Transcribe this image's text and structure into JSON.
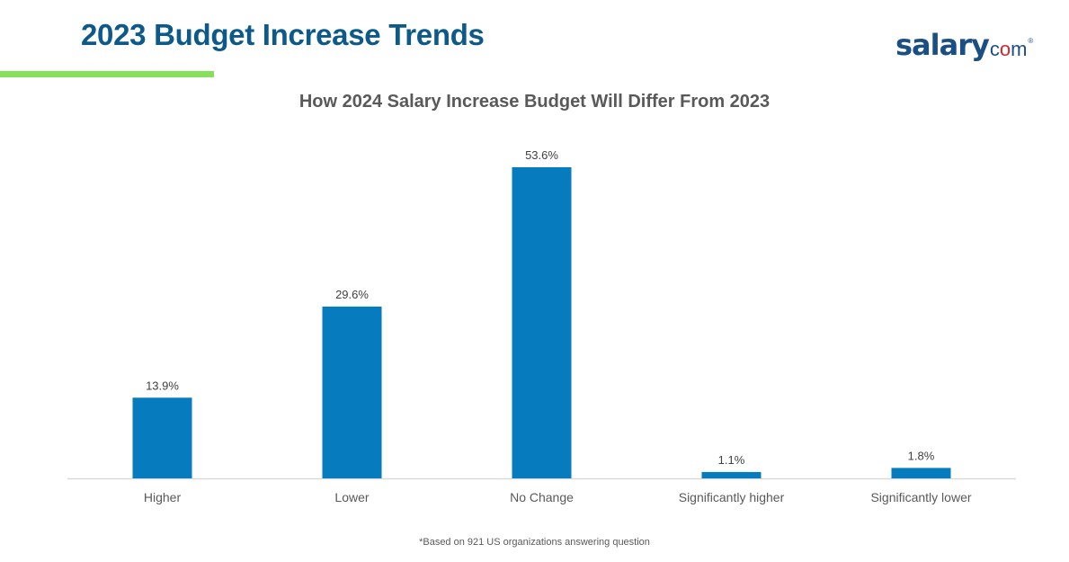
{
  "header": {
    "title": "2023 Budget Increase Trends",
    "accent_color": "#86e05a",
    "title_color": "#0d5a8a"
  },
  "logo": {
    "main": "salary",
    "suffix_c": "c",
    "suffix_dot": "o",
    "suffix_m": "m",
    "registered": "®"
  },
  "chart_data": {
    "type": "bar",
    "title": "How 2024 Salary Increase Budget Will Differ From 2023",
    "categories": [
      "Higher",
      "Lower",
      "No Change",
      "Significantly higher",
      "Significantly lower"
    ],
    "values": [
      13.9,
      29.6,
      53.6,
      1.1,
      1.8
    ],
    "data_labels": [
      "13.9%",
      "29.6%",
      "53.6%",
      "1.1%",
      "1.8%"
    ],
    "unit": "%",
    "xlabel": "",
    "ylabel": "",
    "ylim": [
      0,
      53.6
    ],
    "grid": false,
    "legend": "none",
    "bar_color": "#067bbd"
  },
  "footnote": "*Based on 921 US organizations answering question"
}
